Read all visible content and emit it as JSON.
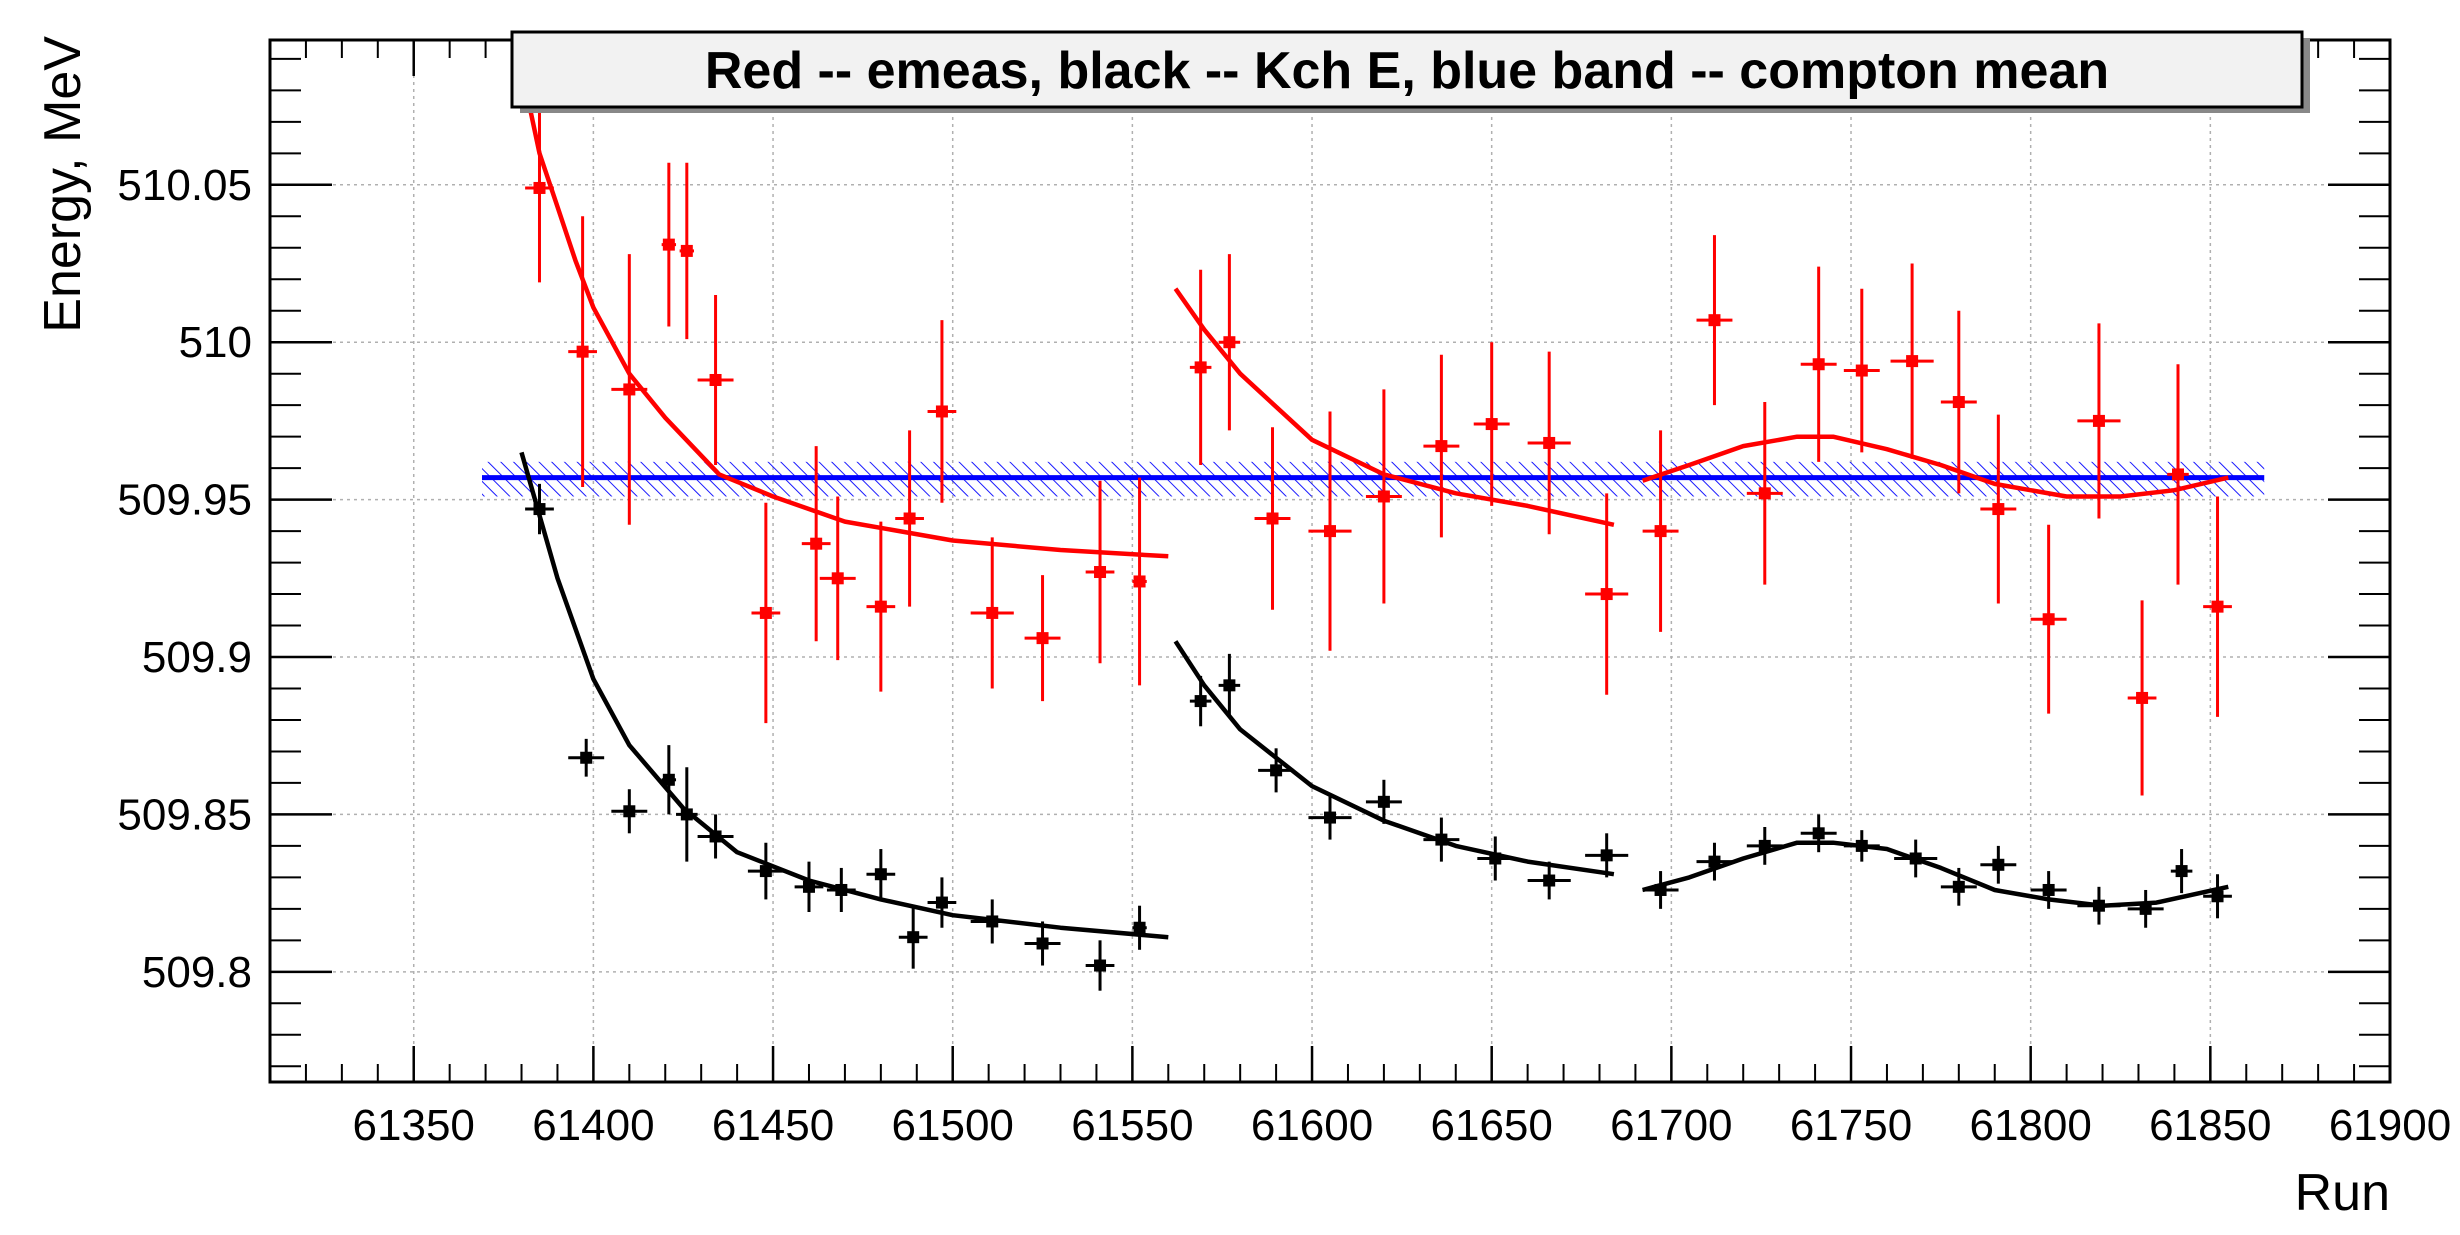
{
  "chart_data": {
    "type": "scatter",
    "title": "Red -- emeas, black -- Kch E, blue band -- compton mean",
    "xlabel": "Run",
    "ylabel": "Energy, MeV",
    "xlim": [
      61310,
      61900
    ],
    "ylim": [
      509.765,
      510.096
    ],
    "x_ticks": [
      "61350",
      "61400",
      "61450",
      "61500",
      "61550",
      "61600",
      "61650",
      "61700",
      "61750",
      "61800",
      "61850",
      "61900"
    ],
    "y_ticks": [
      "509.8",
      "509.85",
      "509.9",
      "509.95",
      "510",
      "510.05"
    ],
    "grid": true,
    "colors": {
      "emeas": "#ff0000",
      "kch": "#000000",
      "compton": "#0000ff"
    },
    "series": [
      {
        "key": "emeas",
        "points": [
          {
            "x": 61385,
            "y": 510.049,
            "xe": 4,
            "ye": 0.03
          },
          {
            "x": 61397,
            "y": 509.997,
            "xe": 4,
            "ye": 0.043
          },
          {
            "x": 61410,
            "y": 509.985,
            "xe": 5,
            "ye": 0.043
          },
          {
            "x": 61421,
            "y": 510.031,
            "xe": 2,
            "ye": 0.026
          },
          {
            "x": 61426,
            "y": 510.029,
            "xe": 2,
            "ye": 0.028
          },
          {
            "x": 61434,
            "y": 509.988,
            "xe": 5,
            "ye": 0.027
          },
          {
            "x": 61448,
            "y": 509.914,
            "xe": 4,
            "ye": 0.035
          },
          {
            "x": 61462,
            "y": 509.936,
            "xe": 4,
            "ye": 0.031
          },
          {
            "x": 61468,
            "y": 509.925,
            "xe": 5,
            "ye": 0.026
          },
          {
            "x": 61480,
            "y": 509.916,
            "xe": 4,
            "ye": 0.027
          },
          {
            "x": 61488,
            "y": 509.944,
            "xe": 4,
            "ye": 0.028
          },
          {
            "x": 61497,
            "y": 509.978,
            "xe": 4,
            "ye": 0.029
          },
          {
            "x": 61511,
            "y": 509.914,
            "xe": 6,
            "ye": 0.024
          },
          {
            "x": 61525,
            "y": 509.906,
            "xe": 5,
            "ye": 0.02
          },
          {
            "x": 61541,
            "y": 509.927,
            "xe": 4,
            "ye": 0.029
          },
          {
            "x": 61552,
            "y": 509.924,
            "xe": 2,
            "ye": 0.033
          },
          {
            "x": 61569,
            "y": 509.992,
            "xe": 3,
            "ye": 0.031
          },
          {
            "x": 61577,
            "y": 510.0,
            "xe": 3,
            "ye": 0.028
          },
          {
            "x": 61589,
            "y": 509.944,
            "xe": 5,
            "ye": 0.029
          },
          {
            "x": 61605,
            "y": 509.94,
            "xe": 6,
            "ye": 0.038
          },
          {
            "x": 61620,
            "y": 509.951,
            "xe": 5,
            "ye": 0.034
          },
          {
            "x": 61636,
            "y": 509.967,
            "xe": 5,
            "ye": 0.029
          },
          {
            "x": 61650,
            "y": 509.974,
            "xe": 5,
            "ye": 0.026
          },
          {
            "x": 61666,
            "y": 509.968,
            "xe": 6,
            "ye": 0.029
          },
          {
            "x": 61682,
            "y": 509.92,
            "xe": 6,
            "ye": 0.032
          },
          {
            "x": 61697,
            "y": 509.94,
            "xe": 5,
            "ye": 0.032
          },
          {
            "x": 61712,
            "y": 510.007,
            "xe": 5,
            "ye": 0.027
          },
          {
            "x": 61726,
            "y": 509.952,
            "xe": 5,
            "ye": 0.029
          },
          {
            "x": 61741,
            "y": 509.993,
            "xe": 5,
            "ye": 0.031
          },
          {
            "x": 61753,
            "y": 509.991,
            "xe": 5,
            "ye": 0.026
          },
          {
            "x": 61767,
            "y": 509.994,
            "xe": 6,
            "ye": 0.031
          },
          {
            "x": 61780,
            "y": 509.981,
            "xe": 5,
            "ye": 0.029
          },
          {
            "x": 61791,
            "y": 509.947,
            "xe": 5,
            "ye": 0.03
          },
          {
            "x": 61805,
            "y": 509.912,
            "xe": 5,
            "ye": 0.03
          },
          {
            "x": 61819,
            "y": 509.975,
            "xe": 6,
            "ye": 0.031
          },
          {
            "x": 61831,
            "y": 509.887,
            "xe": 4,
            "ye": 0.031
          },
          {
            "x": 61841,
            "y": 509.958,
            "xe": 3,
            "ye": 0.035
          },
          {
            "x": 61852,
            "y": 509.916,
            "xe": 4,
            "ye": 0.035
          }
        ]
      },
      {
        "key": "kch",
        "points": [
          {
            "x": 61385,
            "y": 509.947,
            "xe": 4,
            "ye": 0.008
          },
          {
            "x": 61398,
            "y": 509.868,
            "xe": 5,
            "ye": 0.006
          },
          {
            "x": 61410,
            "y": 509.851,
            "xe": 5,
            "ye": 0.007
          },
          {
            "x": 61421,
            "y": 509.861,
            "xe": 2,
            "ye": 0.011
          },
          {
            "x": 61426,
            "y": 509.85,
            "xe": 3,
            "ye": 0.015
          },
          {
            "x": 61434,
            "y": 509.843,
            "xe": 5,
            "ye": 0.007
          },
          {
            "x": 61448,
            "y": 509.832,
            "xe": 5,
            "ye": 0.009
          },
          {
            "x": 61460,
            "y": 509.827,
            "xe": 4,
            "ye": 0.008
          },
          {
            "x": 61469,
            "y": 509.826,
            "xe": 4,
            "ye": 0.007
          },
          {
            "x": 61480,
            "y": 509.831,
            "xe": 4,
            "ye": 0.008
          },
          {
            "x": 61489,
            "y": 509.811,
            "xe": 4,
            "ye": 0.01
          },
          {
            "x": 61497,
            "y": 509.822,
            "xe": 4,
            "ye": 0.008
          },
          {
            "x": 61511,
            "y": 509.816,
            "xe": 6,
            "ye": 0.007
          },
          {
            "x": 61525,
            "y": 509.809,
            "xe": 5,
            "ye": 0.007
          },
          {
            "x": 61541,
            "y": 509.802,
            "xe": 4,
            "ye": 0.008
          },
          {
            "x": 61552,
            "y": 509.814,
            "xe": 2,
            "ye": 0.007
          },
          {
            "x": 61569,
            "y": 509.886,
            "xe": 3,
            "ye": 0.008
          },
          {
            "x": 61577,
            "y": 509.891,
            "xe": 3,
            "ye": 0.01
          },
          {
            "x": 61590,
            "y": 509.864,
            "xe": 5,
            "ye": 0.007
          },
          {
            "x": 61605,
            "y": 509.849,
            "xe": 6,
            "ye": 0.007
          },
          {
            "x": 61620,
            "y": 509.854,
            "xe": 5,
            "ye": 0.007
          },
          {
            "x": 61636,
            "y": 509.842,
            "xe": 5,
            "ye": 0.007
          },
          {
            "x": 61651,
            "y": 509.836,
            "xe": 5,
            "ye": 0.007
          },
          {
            "x": 61666,
            "y": 509.829,
            "xe": 6,
            "ye": 0.006
          },
          {
            "x": 61682,
            "y": 509.837,
            "xe": 6,
            "ye": 0.007
          },
          {
            "x": 61697,
            "y": 509.826,
            "xe": 5,
            "ye": 0.006
          },
          {
            "x": 61712,
            "y": 509.835,
            "xe": 5,
            "ye": 0.006
          },
          {
            "x": 61726,
            "y": 509.84,
            "xe": 5,
            "ye": 0.006
          },
          {
            "x": 61741,
            "y": 509.844,
            "xe": 5,
            "ye": 0.006
          },
          {
            "x": 61753,
            "y": 509.84,
            "xe": 5,
            "ye": 0.005
          },
          {
            "x": 61768,
            "y": 509.836,
            "xe": 6,
            "ye": 0.006
          },
          {
            "x": 61780,
            "y": 509.827,
            "xe": 5,
            "ye": 0.006
          },
          {
            "x": 61791,
            "y": 509.834,
            "xe": 5,
            "ye": 0.006
          },
          {
            "x": 61805,
            "y": 509.826,
            "xe": 5,
            "ye": 0.006
          },
          {
            "x": 61819,
            "y": 509.821,
            "xe": 6,
            "ye": 0.006
          },
          {
            "x": 61832,
            "y": 509.82,
            "xe": 5,
            "ye": 0.006
          },
          {
            "x": 61842,
            "y": 509.832,
            "xe": 3,
            "ye": 0.007
          },
          {
            "x": 61852,
            "y": 509.824,
            "xe": 4,
            "ye": 0.007
          }
        ]
      }
    ],
    "fits": [
      {
        "key": "emeas",
        "points": [
          [
            61380,
            510.087
          ],
          [
            61385,
            510.06
          ],
          [
            61390,
            510.043
          ],
          [
            61395,
            510.026
          ],
          [
            61400,
            510.011
          ],
          [
            61410,
            509.99
          ],
          [
            61420,
            509.976
          ],
          [
            61435,
            509.958
          ],
          [
            61450,
            509.951
          ],
          [
            61470,
            509.943
          ],
          [
            61500,
            509.937
          ],
          [
            61530,
            509.934
          ],
          [
            61560,
            509.932
          ]
        ]
      },
      {
        "key": "emeas",
        "points": [
          [
            61562,
            510.017
          ],
          [
            61570,
            510.004
          ],
          [
            61580,
            509.99
          ],
          [
            61600,
            509.969
          ],
          [
            61620,
            509.958
          ],
          [
            61640,
            509.952
          ],
          [
            61660,
            509.948
          ],
          [
            61684,
            509.942
          ]
        ]
      },
      {
        "key": "emeas",
        "points": [
          [
            61692,
            509.956
          ],
          [
            61705,
            509.961
          ],
          [
            61720,
            509.967
          ],
          [
            61735,
            509.97
          ],
          [
            61745,
            509.97
          ],
          [
            61760,
            509.966
          ],
          [
            61775,
            509.961
          ],
          [
            61790,
            509.955
          ],
          [
            61810,
            509.951
          ],
          [
            61825,
            509.951
          ],
          [
            61840,
            509.953
          ],
          [
            61855,
            509.957
          ]
        ]
      },
      {
        "key": "kch",
        "points": [
          [
            61380,
            509.965
          ],
          [
            61385,
            509.945
          ],
          [
            61390,
            509.925
          ],
          [
            61400,
            509.893
          ],
          [
            61410,
            509.872
          ],
          [
            61425,
            509.852
          ],
          [
            61440,
            509.838
          ],
          [
            61460,
            509.829
          ],
          [
            61480,
            509.823
          ],
          [
            61500,
            509.818
          ],
          [
            61530,
            509.814
          ],
          [
            61560,
            509.811
          ]
        ]
      },
      {
        "key": "kch",
        "points": [
          [
            61562,
            509.905
          ],
          [
            61570,
            509.891
          ],
          [
            61580,
            509.877
          ],
          [
            61600,
            509.859
          ],
          [
            61620,
            509.848
          ],
          [
            61640,
            509.84
          ],
          [
            61660,
            509.835
          ],
          [
            61684,
            509.831
          ]
        ]
      },
      {
        "key": "kch",
        "points": [
          [
            61692,
            509.826
          ],
          [
            61705,
            509.83
          ],
          [
            61720,
            509.836
          ],
          [
            61735,
            509.841
          ],
          [
            61745,
            509.841
          ],
          [
            61760,
            509.839
          ],
          [
            61775,
            509.833
          ],
          [
            61790,
            509.826
          ],
          [
            61805,
            509.823
          ],
          [
            61820,
            509.821
          ],
          [
            61835,
            509.822
          ],
          [
            61855,
            509.827
          ]
        ]
      }
    ],
    "band": {
      "key": "compton",
      "x": [
        61369,
        61865
      ],
      "y_mean": 509.957,
      "y_low": 509.951,
      "y_high": 509.962
    }
  }
}
